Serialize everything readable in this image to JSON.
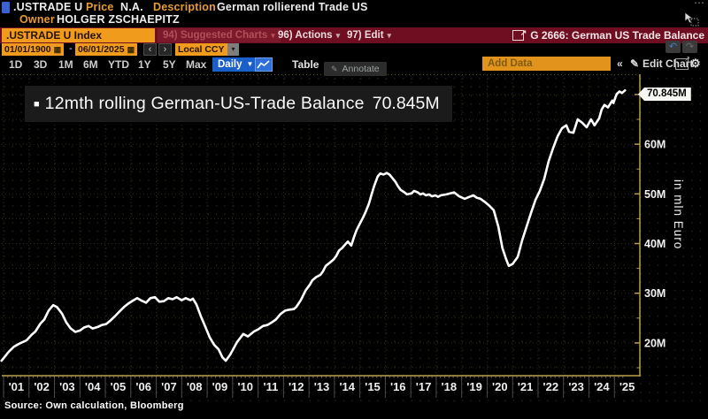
{
  "header": {
    "ticker": ".USTRADE U",
    "price_label": "Price",
    "price_value": "N.A.",
    "description_label": "Description",
    "description_value": "German rollierend Trade US",
    "owner_label": "Owner",
    "owner_value": "HOLGER ZSCHAEPITZ"
  },
  "title_bar": {
    "security": ".USTRADE U Index",
    "suggested_charts_label": "94) Suggested Charts",
    "actions_label": "96) Actions",
    "edit_label": "97) Edit",
    "chart_ref": "G 2666: German US Trade Balance"
  },
  "toolbar": {
    "date_from": "01/01/1900",
    "range_separator": "-",
    "date_to": "06/01/2025",
    "currency": "Local CCY",
    "periods": [
      "1D",
      "3D",
      "1M",
      "6M",
      "YTD",
      "1Y",
      "5Y",
      "Max"
    ],
    "frequency": "Daily",
    "table_label": "Table",
    "add_data_placeholder": "Add Data",
    "edit_chart_label": "Edit Chart",
    "annotate_label": "Annotate"
  },
  "icons": {
    "calendar": "▦",
    "caret_down": "▾",
    "caret_down_solid": "▼",
    "prev": "‹",
    "next": "›",
    "undo": "↶",
    "redo": "↷",
    "export_arrow": "↗",
    "popout_arrow": "↗",
    "pencil": "✎",
    "gear": "⚙",
    "double_chevron_left": "«",
    "bullet": "■",
    "overflow_dots": "⋯"
  },
  "colors": {
    "amber": "#F09B1C",
    "maroon": "#6F0E20",
    "blue": "#1A5FC9"
  },
  "chart_data": {
    "type": "line",
    "title": "12mth rolling German-US-Trade Balance",
    "legend_value": "70.845M",
    "last_value_label": "70.845M",
    "ylabel_right": "in mln Euro",
    "unit": "mln Euro",
    "grid": true,
    "legend_position": "top-left",
    "x_domain": [
      2001,
      2026
    ],
    "y_domain": [
      13.4,
      73.9
    ],
    "y_ticks_major": [
      20,
      30,
      40,
      50,
      60,
      70
    ],
    "y_ticks_minor": [
      15,
      25,
      35,
      45,
      55,
      65
    ],
    "y_tick_suffix": "M",
    "x_tick_labels": [
      "'01",
      "'02",
      "'03",
      "'04",
      "'05",
      "'06",
      "'07",
      "'08",
      "'09",
      "'10",
      "'11",
      "'12",
      "'13",
      "'14",
      "'15",
      "'16",
      "'17",
      "'18",
      "'19",
      "'20",
      "'21",
      "'22",
      "'23",
      "'24",
      "'25"
    ],
    "line_color": "#FFFFFF",
    "axis_color": "#B9A14D",
    "grid_color": "#2E2B18",
    "series": [
      {
        "name": "12mth rolling German-US-Trade Balance",
        "points": [
          [
            2000.92,
            16.4
          ],
          [
            2001.05,
            17.2
          ],
          [
            2001.2,
            18.2
          ],
          [
            2001.4,
            19.2
          ],
          [
            2001.6,
            19.8
          ],
          [
            2001.9,
            20.5
          ],
          [
            2002.1,
            21.6
          ],
          [
            2002.25,
            22.3
          ],
          [
            2002.45,
            23.9
          ],
          [
            2002.6,
            24.7
          ],
          [
            2002.77,
            26.5
          ],
          [
            2002.95,
            27.6
          ],
          [
            2003.1,
            27.2
          ],
          [
            2003.3,
            25.9
          ],
          [
            2003.47,
            24.1
          ],
          [
            2003.64,
            22.9
          ],
          [
            2003.82,
            22.2
          ],
          [
            2004.0,
            22.5
          ],
          [
            2004.16,
            23.1
          ],
          [
            2004.34,
            23.4
          ],
          [
            2004.5,
            22.9
          ],
          [
            2004.7,
            23.2
          ],
          [
            2004.86,
            23.6
          ],
          [
            2005.03,
            23.8
          ],
          [
            2005.2,
            24.5
          ],
          [
            2005.38,
            25.4
          ],
          [
            2005.55,
            26.3
          ],
          [
            2005.73,
            27.2
          ],
          [
            2005.9,
            27.9
          ],
          [
            2006.08,
            28.5
          ],
          [
            2006.25,
            29.0
          ],
          [
            2006.42,
            28.5
          ],
          [
            2006.6,
            28.1
          ],
          [
            2006.77,
            29.0
          ],
          [
            2006.95,
            29.2
          ],
          [
            2007.12,
            28.3
          ],
          [
            2007.3,
            28.4
          ],
          [
            2007.47,
            29.0
          ],
          [
            2007.64,
            28.8
          ],
          [
            2007.8,
            29.2
          ],
          [
            2008.0,
            28.6
          ],
          [
            2008.16,
            29.0
          ],
          [
            2008.34,
            28.6
          ],
          [
            2008.44,
            28.9
          ],
          [
            2008.58,
            27.7
          ],
          [
            2008.75,
            25.4
          ],
          [
            2008.93,
            23.2
          ],
          [
            2009.1,
            21.1
          ],
          [
            2009.28,
            19.6
          ],
          [
            2009.45,
            18.7
          ],
          [
            2009.6,
            17.1
          ],
          [
            2009.73,
            16.4
          ],
          [
            2009.9,
            17.6
          ],
          [
            2010.18,
            20.2
          ],
          [
            2010.42,
            21.8
          ],
          [
            2010.6,
            21.3
          ],
          [
            2010.84,
            22.3
          ],
          [
            2011.0,
            22.7
          ],
          [
            2011.19,
            23.4
          ],
          [
            2011.36,
            23.6
          ],
          [
            2011.53,
            24.1
          ],
          [
            2011.7,
            24.7
          ],
          [
            2011.88,
            25.8
          ],
          [
            2012.06,
            26.5
          ],
          [
            2012.23,
            26.7
          ],
          [
            2012.4,
            26.8
          ],
          [
            2012.5,
            27.2
          ],
          [
            2012.68,
            28.6
          ],
          [
            2012.86,
            30.5
          ],
          [
            2013.03,
            31.7
          ],
          [
            2013.13,
            32.6
          ],
          [
            2013.27,
            33.2
          ],
          [
            2013.45,
            33.7
          ],
          [
            2013.55,
            34.4
          ],
          [
            2013.66,
            35.5
          ],
          [
            2013.83,
            36.2
          ],
          [
            2013.97,
            36.8
          ],
          [
            2014.07,
            37.5
          ],
          [
            2014.18,
            38.6
          ],
          [
            2014.3,
            39.1
          ],
          [
            2014.42,
            39.8
          ],
          [
            2014.53,
            40.4
          ],
          [
            2014.66,
            39.6
          ],
          [
            2014.77,
            41.3
          ],
          [
            2014.87,
            42.7
          ],
          [
            2015.0,
            44.0
          ],
          [
            2015.12,
            45.2
          ],
          [
            2015.22,
            46.3
          ],
          [
            2015.36,
            48.1
          ],
          [
            2015.46,
            49.9
          ],
          [
            2015.57,
            51.7
          ],
          [
            2015.7,
            53.5
          ],
          [
            2015.8,
            54.1
          ],
          [
            2015.92,
            53.9
          ],
          [
            2016.06,
            54.2
          ],
          [
            2016.16,
            53.9
          ],
          [
            2016.26,
            53.3
          ],
          [
            2016.4,
            52.4
          ],
          [
            2016.5,
            51.5
          ],
          [
            2016.6,
            50.8
          ],
          [
            2016.75,
            50.3
          ],
          [
            2016.85,
            49.9
          ],
          [
            2017.03,
            50.1
          ],
          [
            2017.13,
            50.6
          ],
          [
            2017.27,
            50.3
          ],
          [
            2017.38,
            49.9
          ],
          [
            2017.48,
            50.1
          ],
          [
            2017.6,
            49.7
          ],
          [
            2017.72,
            49.9
          ],
          [
            2017.83,
            49.5
          ],
          [
            2017.97,
            49.7
          ],
          [
            2018.07,
            49.4
          ],
          [
            2018.18,
            49.7
          ],
          [
            2018.4,
            49.9
          ],
          [
            2018.7,
            50.3
          ],
          [
            2018.9,
            49.5
          ],
          [
            2019.12,
            49.0
          ],
          [
            2019.3,
            49.4
          ],
          [
            2019.46,
            49.7
          ],
          [
            2019.6,
            49.2
          ],
          [
            2019.74,
            49.0
          ],
          [
            2019.9,
            48.4
          ],
          [
            2020.09,
            47.6
          ],
          [
            2020.26,
            46.7
          ],
          [
            2020.44,
            43.4
          ],
          [
            2020.6,
            39.1
          ],
          [
            2020.75,
            36.8
          ],
          [
            2020.85,
            35.5
          ],
          [
            2021.0,
            35.9
          ],
          [
            2021.2,
            37.3
          ],
          [
            2021.38,
            40.7
          ],
          [
            2021.55,
            43.4
          ],
          [
            2021.72,
            46.1
          ],
          [
            2021.9,
            48.8
          ],
          [
            2022.07,
            50.6
          ],
          [
            2022.24,
            53.0
          ],
          [
            2022.42,
            56.6
          ],
          [
            2022.6,
            59.3
          ],
          [
            2022.77,
            61.6
          ],
          [
            2022.94,
            63.2
          ],
          [
            2023.11,
            63.8
          ],
          [
            2023.22,
            62.5
          ],
          [
            2023.39,
            62.3
          ],
          [
            2023.56,
            65.0
          ],
          [
            2023.74,
            64.3
          ],
          [
            2023.91,
            63.4
          ],
          [
            2024.08,
            65.0
          ],
          [
            2024.22,
            63.8
          ],
          [
            2024.4,
            65.2
          ],
          [
            2024.5,
            67.0
          ],
          [
            2024.61,
            67.9
          ],
          [
            2024.75,
            67.4
          ],
          [
            2024.92,
            68.8
          ],
          [
            2024.96,
            68.3
          ],
          [
            2025.09,
            70.1
          ],
          [
            2025.2,
            70.6
          ],
          [
            2025.3,
            70.3
          ],
          [
            2025.42,
            70.845
          ]
        ]
      }
    ]
  },
  "footer": {
    "source": "Source: Own calculation, Bloomberg"
  }
}
